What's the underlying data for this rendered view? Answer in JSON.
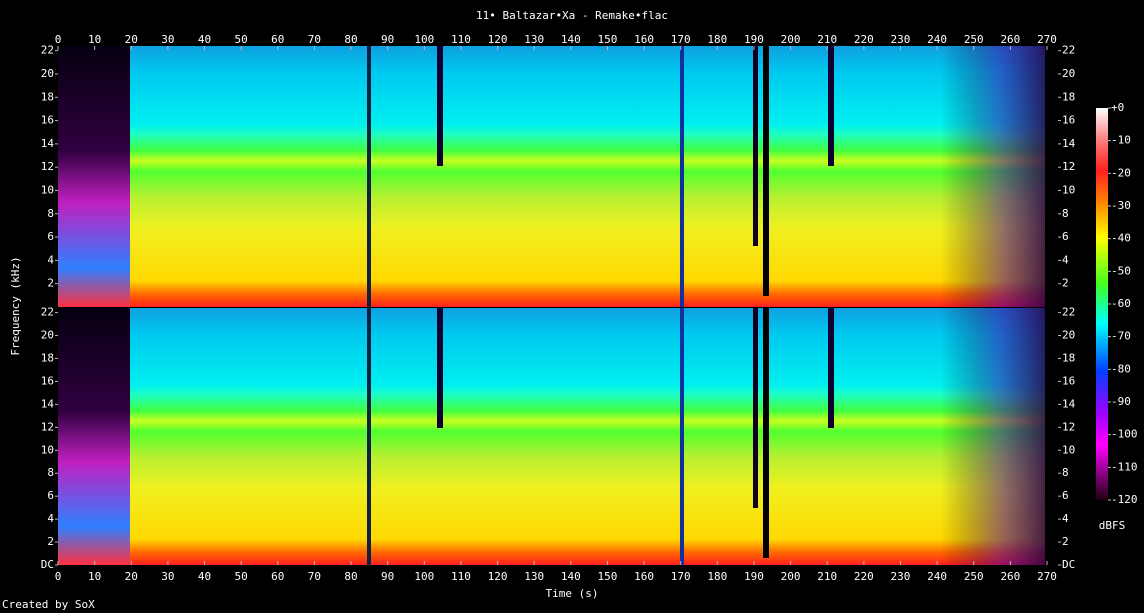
{
  "chart_data": {
    "type": "spectrogram",
    "title": "11• Baltazar•Xa - Remake•flac",
    "xlabel": "Time (s)",
    "ylabel": "Frequency (kHz)",
    "xlim": [
      0,
      273
    ],
    "xticks": [
      0,
      10,
      20,
      30,
      40,
      50,
      60,
      70,
      80,
      90,
      100,
      110,
      120,
      130,
      140,
      150,
      160,
      170,
      180,
      190,
      200,
      210,
      220,
      230,
      240,
      250,
      260,
      270
    ],
    "channels": [
      {
        "ylim": [
          0,
          22.4
        ],
        "yticks": [
          2,
          4,
          6,
          8,
          10,
          12,
          14,
          16,
          18,
          20,
          22
        ]
      },
      {
        "ylim": [
          0,
          22.4
        ],
        "yticks": [
          {
            "value": 0,
            "label": "DC"
          },
          2,
          4,
          6,
          8,
          10,
          12,
          14,
          16,
          18,
          20,
          22
        ]
      }
    ],
    "colorbar": {
      "label": "dBFS",
      "lim": [
        -120,
        0
      ],
      "ticks": [
        {
          "value": 0,
          "label": "+0"
        },
        -10,
        -20,
        -30,
        -40,
        -50,
        -60,
        -70,
        -80,
        -90,
        -100,
        -110,
        -120
      ]
    }
  },
  "footer": "Created by SoX"
}
